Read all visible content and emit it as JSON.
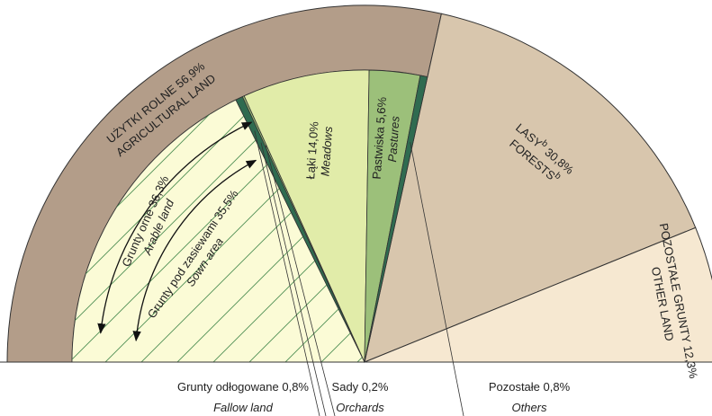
{
  "chart_data": {
    "type": "pie",
    "layout": "semicircle",
    "outer": [
      {
        "name": "UŻYTKI ROLNE",
        "name_en": "AGRICULTURAL LAND",
        "value": 56.9,
        "value_label": "56,9%",
        "color": "#b39d89"
      },
      {
        "name": "LASY",
        "name_en": "FORESTS",
        "footnote": "b",
        "value": 30.8,
        "value_label": "30,8%",
        "color": "#d8c6ad"
      },
      {
        "name": "POZOSTAŁE GRUNTY",
        "name_en": "OTHER LAND",
        "value": 12.3,
        "value_label": "12,3%",
        "color": "#f6e8d1"
      }
    ],
    "inner": [
      {
        "name": "Grunty pod zasiewami",
        "name_en": "Sown area",
        "value": 35.5,
        "value_label": "35,5%",
        "color": "#fbfbd6",
        "hatch": true
      },
      {
        "name": "Grunty odłogowane",
        "name_en": "Fallow land",
        "value": 0.8,
        "value_label": "0,8%",
        "color": "#2f6b50"
      },
      {
        "name": "Sady",
        "name_en": "Orchards",
        "value": 0.2,
        "value_label": "0,2%",
        "color": "#9cc07a"
      },
      {
        "name": "Łąki",
        "name_en": "Meadows",
        "value": 14.0,
        "value_label": "14,0%",
        "color": "#e1eca9"
      },
      {
        "name": "Pastwiska",
        "name_en": "Pastures",
        "value": 5.6,
        "value_label": "5,6%",
        "color": "#9cc07a"
      },
      {
        "name": "Pozostałe",
        "name_en": "Others",
        "value": 0.8,
        "value_label": "0,8%",
        "color": "#2f6b50"
      }
    ],
    "brackets": [
      {
        "name": "Grunty orne",
        "name_en": "Arable land",
        "value": 36.3,
        "value_label": "36,3%"
      }
    ]
  }
}
